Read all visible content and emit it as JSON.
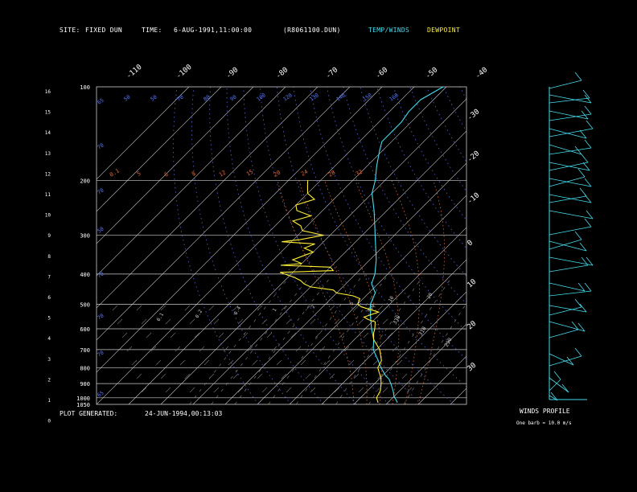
{
  "header": {
    "site_label": "SITE:",
    "site_value": "FIXED DUN",
    "time_label": "TIME:",
    "time_value": "6-AUG-1991,11:00:00",
    "file_id": "(R8061100.DUN)",
    "legend_temp": "TEMP/WINDS",
    "legend_dew": "DEWPOINT"
  },
  "footer": {
    "generated_label": "PLOT GENERATED:",
    "generated_value": "24-JUN-1994,00:13:03"
  },
  "winds": {
    "title": "WINDS PROFILE",
    "note": "One barb = 10.0 m/s"
  },
  "colors": {
    "temperature": "#44ddee",
    "dewpoint": "#ffee33",
    "isotherm": "#cccccc",
    "mixing_ratio": "#5577ff",
    "dry_adiabat": "#5566dd",
    "moist_adiabat": "#dd6633",
    "axes": "#cccccc"
  },
  "chart_data": {
    "type": "line",
    "pressure_levels": [
      100,
      200,
      300,
      400,
      500,
      600,
      700,
      800,
      900,
      1000,
      1050
    ],
    "height_ticks": [
      "16",
      "15",
      "14",
      "13",
      "12",
      "11",
      "10",
      "9",
      "8",
      "7",
      "6",
      "5",
      "4",
      "3",
      "2",
      "1",
      "0"
    ],
    "top_temp_labels": [
      "-110",
      "-100",
      "-90",
      "-80",
      "-70",
      "-60",
      "-50",
      "-40"
    ],
    "right_temp_labels": [
      "-30",
      "-20",
      "-10",
      "0",
      "10",
      "20",
      "30"
    ],
    "mixing_ratio_labels": [
      "0.1",
      "0.2",
      "0.4",
      "1",
      "2",
      "5",
      "10",
      "20"
    ],
    "upper_labels": [
      "0.1",
      "5",
      "6",
      "8",
      "12",
      "15",
      "20",
      "24",
      "28",
      "32"
    ],
    "theta_labels": [
      "350",
      "330",
      "310",
      "290"
    ],
    "temperature": [
      [
        1037,
        23
      ],
      [
        1020,
        22
      ],
      [
        990,
        20
      ],
      [
        950,
        18
      ],
      [
        900,
        15
      ],
      [
        870,
        13
      ],
      [
        850,
        11
      ],
      [
        800,
        7
      ],
      [
        760,
        4
      ],
      [
        700,
        -1
      ],
      [
        650,
        -4
      ],
      [
        600,
        -8
      ],
      [
        550,
        -12
      ],
      [
        500,
        -16
      ],
      [
        460,
        -18
      ],
      [
        430,
        -22
      ],
      [
        400,
        -24
      ],
      [
        360,
        -28
      ],
      [
        300,
        -36
      ],
      [
        280,
        -39
      ],
      [
        250,
        -44
      ],
      [
        220,
        -50
      ],
      [
        200,
        -53
      ],
      [
        180,
        -57
      ],
      [
        160,
        -61
      ],
      [
        150,
        -63
      ],
      [
        140,
        -63
      ],
      [
        130,
        -63
      ],
      [
        120,
        -64
      ],
      [
        110,
        -64
      ],
      [
        100,
        -61
      ]
    ],
    "dewpoint": [
      [
        1037,
        17
      ],
      [
        1000,
        15
      ],
      [
        950,
        14
      ],
      [
        900,
        12
      ],
      [
        860,
        10
      ],
      [
        830,
        8
      ],
      [
        800,
        6
      ],
      [
        760,
        5
      ],
      [
        700,
        1
      ],
      [
        650,
        -4
      ],
      [
        620,
        -6
      ],
      [
        600,
        -7
      ],
      [
        570,
        -9
      ],
      [
        560,
        -12
      ],
      [
        550,
        -14
      ],
      [
        530,
        -11
      ],
      [
        510,
        -18
      ],
      [
        500,
        -20
      ],
      [
        480,
        -21
      ],
      [
        470,
        -24
      ],
      [
        460,
        -30
      ],
      [
        450,
        -32
      ],
      [
        440,
        -40
      ],
      [
        430,
        -43
      ],
      [
        420,
        -45
      ],
      [
        410,
        -48
      ],
      [
        400,
        -52
      ],
      [
        395,
        -54
      ],
      [
        390,
        -38
      ],
      [
        380,
        -40
      ],
      [
        375,
        -56
      ],
      [
        370,
        -50
      ],
      [
        360,
        -54
      ],
      [
        340,
        -50
      ],
      [
        330,
        -54
      ],
      [
        320,
        -52
      ],
      [
        315,
        -63
      ],
      [
        310,
        -58
      ],
      [
        300,
        -52
      ],
      [
        290,
        -60
      ],
      [
        280,
        -62
      ],
      [
        270,
        -66
      ],
      [
        260,
        -62
      ],
      [
        250,
        -68
      ],
      [
        240,
        -70
      ],
      [
        230,
        -66
      ],
      [
        220,
        -70
      ],
      [
        210,
        -72
      ],
      [
        200,
        -74
      ]
    ]
  }
}
